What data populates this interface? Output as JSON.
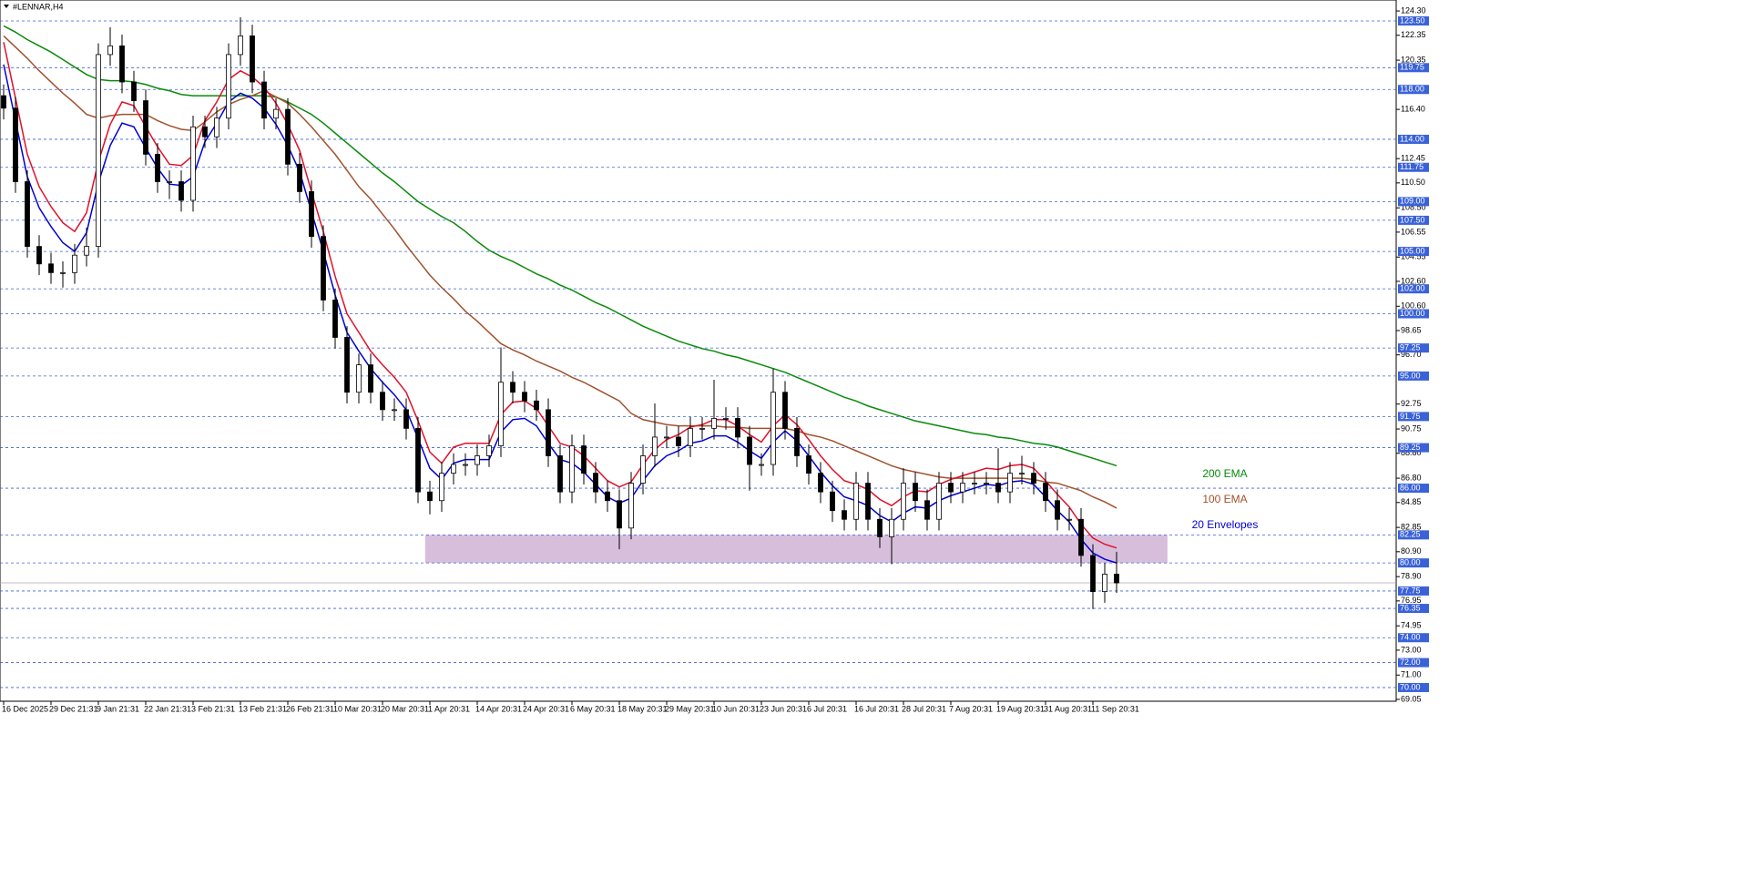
{
  "chart_data": {
    "type": "candlestick",
    "title": "#LENNAR,H4",
    "categories": [
      "16 Dec 2025",
      null,
      null,
      null,
      "29 Dec 21:31",
      null,
      null,
      null,
      "9 Jan 21:31",
      null,
      null,
      null,
      "22 Jan 21:31",
      null,
      null,
      null,
      "3 Feb 21:31",
      null,
      null,
      null,
      "13 Feb 21:31",
      null,
      null,
      null,
      "26 Feb 21:31",
      null,
      null,
      null,
      "10 Mar 20:31",
      null,
      null,
      null,
      "20 Mar 20:31",
      null,
      null,
      null,
      "1 Apr 20:31",
      null,
      null,
      null,
      "14 Apr 20:31",
      null,
      null,
      null,
      "24 Apr 20:31",
      null,
      null,
      null,
      "6 May 20:31",
      null,
      null,
      null,
      "18 May 20:31",
      null,
      null,
      null,
      "29 May 20:31",
      null,
      null,
      null,
      "10 Jun 20:31",
      null,
      null,
      null,
      "23 Jun 20:31",
      null,
      null,
      null,
      "6 Jul 20:31",
      null,
      null,
      null,
      "16 Jul 20:31",
      null,
      null,
      null,
      "28 Jul 20:31",
      null,
      null,
      null,
      "7 Aug 20:31",
      null,
      null,
      null,
      "19 Aug 20:31",
      null,
      null,
      null,
      "31 Aug 20:31",
      null,
      null,
      null,
      "11 Sep 20:31",
      null,
      null
    ],
    "open": [
      117.5,
      116.5,
      110.6,
      105.4,
      104,
      103.3,
      103.3,
      104.7,
      105.4,
      120.8,
      121.5,
      118.6,
      117.1,
      112.8,
      110.6,
      110.6,
      109.1,
      115,
      114.2,
      115.7,
      120.8,
      122.3,
      118.6,
      115.7,
      116.4,
      112,
      109.8,
      106.2,
      101.1,
      98.1,
      93.7,
      95.9,
      93.7,
      92.3,
      92.3,
      90.8,
      85.7,
      85,
      87.2,
      87.9,
      87.9,
      88.6,
      89.4,
      94.5,
      93.7,
      93,
      92.3,
      88.6,
      85.7,
      89.4,
      87.2,
      85.7,
      85,
      82.8,
      86.4,
      88.6,
      90.1,
      90.1,
      89.4,
      90.8,
      90.8,
      91.6,
      91.6,
      90.1,
      87.9,
      87.9,
      93.7,
      90.8,
      88.6,
      87.2,
      85.7,
      84.2,
      83.5,
      86.4,
      83.5,
      82.1,
      83.5,
      86.4,
      85,
      83.5,
      86.4,
      85.7,
      86.4,
      86.4,
      86.4,
      85.7,
      87.2,
      87.2,
      86.4,
      85,
      83.5,
      83.5,
      80.6,
      77.7,
      79.1
    ],
    "high": [
      118.4,
      117.4,
      111.5,
      106.3,
      104.9,
      104.2,
      105.6,
      106.9,
      121.7,
      123.0,
      122.4,
      119.5,
      118.0,
      113.7,
      111.5,
      111.5,
      115.9,
      115.9,
      116.6,
      121.7,
      123.8,
      123.2,
      119.5,
      117.3,
      117.3,
      112.9,
      110.7,
      107.1,
      102.0,
      99.0,
      96.8,
      96.8,
      94.6,
      93.2,
      93.2,
      91.7,
      86.6,
      88.1,
      88.8,
      88.8,
      89.5,
      90.3,
      97.3,
      95.4,
      94.6,
      93.9,
      93.2,
      89.5,
      90.3,
      90.3,
      88.1,
      86.6,
      85.9,
      87.3,
      89.5,
      92.8,
      91.0,
      91.0,
      91.7,
      91.7,
      94.7,
      92.5,
      92.5,
      91.0,
      88.8,
      95.6,
      94.6,
      91.7,
      89.5,
      88.1,
      86.6,
      85.1,
      87.3,
      87.3,
      84.4,
      84.4,
      87.6,
      87.3,
      85.9,
      87.3,
      87.3,
      87.3,
      87.3,
      87.3,
      89.2,
      88.1,
      88.6,
      88.1,
      87.3,
      85.9,
      84.4,
      84.4,
      81.5,
      80.0,
      80.9
    ],
    "low": [
      115.6,
      109.7,
      104.5,
      103.1,
      102.4,
      102.1,
      102.4,
      103.8,
      104.5,
      119.9,
      117.7,
      116.2,
      111.9,
      109.7,
      109.2,
      108.2,
      108.2,
      113.3,
      113.3,
      114.8,
      119.9,
      117.7,
      114.8,
      114.8,
      111.1,
      108.9,
      105.3,
      100.2,
      97.2,
      92.8,
      92.8,
      92.8,
      91.4,
      91.4,
      89.9,
      84.8,
      83.9,
      84.1,
      86.3,
      87.0,
      87.0,
      87.7,
      88.5,
      92.8,
      92.1,
      91.4,
      87.7,
      84.8,
      84.8,
      86.3,
      84.8,
      84.1,
      81.1,
      81.9,
      85.5,
      87.7,
      89.2,
      88.5,
      88.5,
      89.9,
      89.9,
      90.7,
      89.2,
      85.8,
      87.0,
      87.0,
      89.9,
      87.7,
      86.3,
      84.8,
      83.3,
      82.6,
      82.6,
      82.6,
      81.2,
      79.9,
      82.6,
      84.1,
      82.6,
      82.6,
      84.8,
      84.8,
      85.5,
      85.5,
      84.8,
      84.8,
      86.3,
      85.5,
      84.1,
      82.6,
      82.6,
      79.7,
      76.3,
      76.8,
      77.6
    ],
    "close": [
      116.5,
      110.6,
      105.4,
      104,
      103.3,
      103.3,
      104.7,
      105.4,
      120.8,
      121.5,
      118.6,
      117.1,
      112.8,
      110.6,
      110.6,
      109.1,
      115,
      114.2,
      115.7,
      120.8,
      122.3,
      118.6,
      115.7,
      116.4,
      112,
      109.8,
      106.2,
      101.1,
      98.1,
      93.7,
      95.9,
      93.7,
      92.3,
      92.3,
      90.8,
      85.7,
      85,
      87.2,
      87.9,
      87.9,
      88.6,
      89.4,
      94.5,
      93.7,
      93,
      92.3,
      88.6,
      85.7,
      89.4,
      87.2,
      85.7,
      85,
      82.8,
      86.4,
      88.6,
      90.1,
      90.1,
      89.4,
      90.8,
      90.8,
      91.6,
      91.6,
      90.1,
      87.9,
      87.9,
      93.7,
      90.8,
      88.6,
      87.2,
      85.7,
      84.2,
      83.5,
      86.4,
      83.5,
      82.1,
      83.5,
      86.4,
      85,
      83.5,
      86.4,
      85.7,
      86.4,
      86.4,
      86.4,
      85.7,
      87.2,
      87.2,
      86.4,
      85,
      83.5,
      83.5,
      80.6,
      77.7,
      79.1,
      78.4
    ],
    "series": [
      {
        "name": "200 EMA",
        "color": "#0a8a0a",
        "values": [
          123.1,
          122.6,
          122.0,
          121.5,
          121.0,
          120.4,
          119.8,
          119.2,
          118.8,
          118.7,
          118.7,
          118.6,
          118.4,
          118.1,
          117.9,
          117.6,
          117.5,
          117.5,
          117.5,
          117.5,
          117.5,
          117.5,
          117.5,
          117.4,
          117.0,
          116.5,
          116.0,
          115.3,
          114.5,
          113.7,
          112.9,
          112.1,
          111.3,
          110.6,
          109.8,
          109.0,
          108.4,
          107.8,
          107.3,
          106.6,
          105.8,
          105.1,
          104.6,
          104.2,
          103.7,
          103.2,
          102.8,
          102.3,
          101.9,
          101.4,
          100.9,
          100.5,
          100.0,
          99.5,
          99.0,
          98.6,
          98.2,
          97.8,
          97.5,
          97.2,
          97.0,
          96.7,
          96.5,
          96.2,
          95.9,
          95.6,
          95.3,
          94.9,
          94.5,
          94.1,
          93.7,
          93.3,
          93.0,
          92.6,
          92.3,
          92.0,
          91.7,
          91.4,
          91.2,
          91.0,
          90.8,
          90.6,
          90.4,
          90.3,
          90.1,
          90.0,
          89.8,
          89.6,
          89.5,
          89.3,
          89.0,
          88.7,
          88.4,
          88.1,
          87.8
        ]
      },
      {
        "name": "100 EMA",
        "color": "#a0522d",
        "values": [
          122.3,
          121.4,
          120.5,
          119.5,
          118.6,
          117.7,
          116.9,
          116.0,
          115.7,
          115.9,
          116.0,
          116.0,
          116.0,
          115.5,
          115.1,
          114.8,
          114.7,
          115.4,
          116.2,
          116.8,
          117.2,
          117.5,
          117.9,
          117.4,
          116.9,
          116.0,
          115.0,
          113.9,
          112.8,
          111.5,
          110.2,
          109.2,
          108.0,
          106.8,
          105.5,
          104.3,
          103.1,
          102.1,
          101.2,
          100.2,
          99.4,
          98.5,
          97.6,
          97.1,
          96.7,
          96.2,
          95.8,
          95.4,
          94.9,
          94.5,
          94.0,
          93.5,
          93.0,
          92.0,
          91.5,
          91.3,
          91.1,
          91.0,
          91.0,
          91.0,
          91.0,
          90.9,
          90.9,
          90.8,
          90.8,
          90.8,
          90.8,
          90.6,
          90.3,
          90.1,
          89.8,
          89.4,
          89.0,
          88.6,
          88.2,
          87.8,
          87.5,
          87.3,
          87.1,
          86.9,
          86.8,
          86.8,
          86.8,
          86.8,
          86.8,
          86.8,
          86.8,
          86.7,
          86.5,
          86.4,
          86.1,
          85.8,
          85.3,
          84.9,
          84.4
        ]
      },
      {
        "name": "20 Envelopes",
        "color": "#0000d0",
        "values": [
          120,
          115.5,
          111,
          108.5,
          107,
          105.7,
          105,
          106.5,
          110.5,
          113.5,
          115.3,
          115,
          113.3,
          111.7,
          110.4,
          110.3,
          111,
          113.8,
          115.3,
          117,
          117.7,
          117.3,
          116.5,
          115.2,
          113.5,
          111.4,
          108.2,
          105,
          101.5,
          98.5,
          97,
          95.6,
          94.5,
          93.5,
          92.3,
          90,
          87.6,
          86.7,
          88,
          88.3,
          88.3,
          88.3,
          90.5,
          91.5,
          91.6,
          91,
          89.6,
          88.3,
          88,
          87.3,
          86.3,
          85.3,
          84.8,
          85.2,
          86.6,
          87.8,
          88.6,
          89,
          89.6,
          89.8,
          90.2,
          90.2,
          89.7,
          89,
          88.4,
          89.7,
          90.6,
          89.8,
          88.6,
          87.3,
          86.2,
          85.3,
          85,
          84.6,
          83.8,
          83.3,
          84,
          84.5,
          84.4,
          85,
          85.4,
          85.7,
          86,
          86.3,
          86.2,
          86.5,
          86.6,
          86.3,
          85.3,
          84.2,
          83.3,
          81.9,
          80.8,
          80.3,
          80.0
        ]
      },
      {
        "color": "#e0102a",
        "values": [
          121.8,
          117.3,
          112.8,
          110.2,
          108.6,
          107.3,
          106.6,
          108.1,
          112.2,
          115.2,
          117.0,
          116.7,
          115.0,
          113.4,
          112.0,
          111.9,
          112.7,
          115.5,
          117.0,
          118.8,
          119.5,
          119.0,
          118.2,
          116.9,
          115.2,
          113.1,
          109.8,
          106.6,
          103.0,
          100.0,
          98.5,
          97.0,
          95.9,
          94.9,
          93.7,
          91.4,
          88.9,
          88.0,
          89.3,
          89.6,
          89.6,
          89.6,
          91.9,
          92.9,
          93.0,
          92.4,
          91.0,
          89.6,
          89.3,
          88.6,
          87.6,
          86.6,
          86.1,
          86.5,
          87.9,
          89.1,
          89.9,
          90.3,
          90.9,
          91.1,
          91.5,
          91.5,
          91.0,
          90.3,
          89.7,
          91.0,
          91.9,
          91.1,
          89.9,
          88.6,
          87.5,
          86.6,
          86.3,
          85.9,
          85.1,
          84.6,
          85.3,
          85.8,
          85.7,
          86.3,
          86.7,
          87.0,
          87.3,
          87.6,
          87.5,
          87.8,
          87.9,
          87.6,
          86.6,
          85.5,
          84.5,
          83.1,
          82.0,
          81.5,
          81.2
        ]
      }
    ],
    "ylim": [
      68.9,
      125.18
    ],
    "yticks": [
      {
        "value": 124.3,
        "label": "124.30"
      },
      {
        "value": 122.35,
        "label": "122.35"
      },
      {
        "value": 120.35,
        "label": "120.35"
      },
      {
        "value": 116.4,
        "label": "116.40"
      },
      {
        "value": 112.45,
        "label": "112.45"
      },
      {
        "value": 110.5,
        "label": "110.50"
      },
      {
        "value": 108.5,
        "label": "108.50"
      },
      {
        "value": 106.55,
        "label": "106.55"
      },
      {
        "value": 104.55,
        "label": "104.55"
      },
      {
        "value": 102.6,
        "label": "102.60"
      },
      {
        "value": 100.6,
        "label": "100.60"
      },
      {
        "value": 98.65,
        "label": "98.65"
      },
      {
        "value": 96.7,
        "label": "96.70"
      },
      {
        "value": 92.75,
        "label": "92.75"
      },
      {
        "value": 90.75,
        "label": "90.75"
      },
      {
        "value": 88.8,
        "label": "88.80"
      },
      {
        "value": 86.8,
        "label": "86.80"
      },
      {
        "value": 84.85,
        "label": "84.85"
      },
      {
        "value": 82.85,
        "label": "82.85"
      },
      {
        "value": 80.9,
        "label": "80.90"
      },
      {
        "value": 78.9,
        "label": "78.90"
      },
      {
        "value": 76.95,
        "label": "76.95"
      },
      {
        "value": 74.95,
        "label": "74.95"
      },
      {
        "value": 73.0,
        "label": "73.00"
      },
      {
        "value": 71.0,
        "label": "71.00"
      },
      {
        "value": 69.05,
        "label": "69.05"
      }
    ],
    "levels": [
      {
        "value": 123.5,
        "label": "123.50"
      },
      {
        "value": 119.75,
        "label": "119.75"
      },
      {
        "value": 118,
        "label": "118.00"
      },
      {
        "value": 114,
        "label": "114.00"
      },
      {
        "value": 111.75,
        "label": "111.75"
      },
      {
        "value": 109,
        "label": "109.00"
      },
      {
        "value": 107.5,
        "label": "107.50"
      },
      {
        "value": 105,
        "label": "105.00"
      },
      {
        "value": 102,
        "label": "102.00"
      },
      {
        "value": 100,
        "label": "100.00"
      },
      {
        "value": 97.25,
        "label": "97.25"
      },
      {
        "value": 95,
        "label": "95.00"
      },
      {
        "value": 91.75,
        "label": "91.75"
      },
      {
        "value": 89.25,
        "label": "89.25"
      },
      {
        "value": 86,
        "label": "86.00"
      },
      {
        "value": 82.25,
        "label": "82.25"
      },
      {
        "value": 80,
        "label": "80.00"
      },
      {
        "value": 77.75,
        "label": "77.75"
      },
      {
        "value": 76.35,
        "label": "76.35"
      },
      {
        "value": 74,
        "label": "74.00"
      },
      {
        "value": 72,
        "label": "72.00"
      },
      {
        "value": 70,
        "label": "70.00"
      }
    ],
    "level_color": "#3a62d8",
    "zone": {
      "x": [
        35.6,
        98.3
      ],
      "y": [
        80,
        82.25
      ]
    },
    "zone_color": "#d7bfdc"
  }
}
